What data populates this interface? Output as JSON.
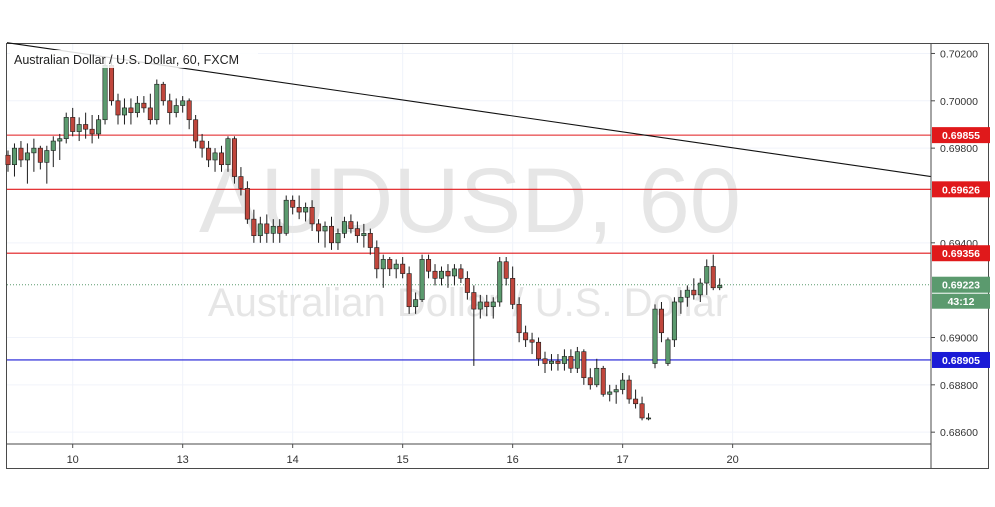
{
  "chart_title": "Australian Dollar / U.S. Dollar, 60, FXCM",
  "watermark": {
    "symbol": "AUDUSD, 60",
    "name": "Australian Dollar / U.S. Dollar"
  },
  "countdown": "43:12",
  "colors": {
    "up": "#5b9a6e",
    "down": "#c0463c",
    "resistance": "#e0191b",
    "support": "#1b1bd6",
    "trendline": "#111111",
    "last_price": "#5b9a6e"
  },
  "chart_data": {
    "type": "candlestick",
    "title": "Australian Dollar / U.S. Dollar, 60, FXCM",
    "x_ticks": [
      {
        "label": "10",
        "bar": 10
      },
      {
        "label": "13",
        "bar": 27
      },
      {
        "label": "14",
        "bar": 44
      },
      {
        "label": "15",
        "bar": 61
      },
      {
        "label": "16",
        "bar": 78
      },
      {
        "label": "17",
        "bar": 95
      },
      {
        "label": "20",
        "bar": 112
      }
    ],
    "y_ticks": [
      "0.70200",
      "0.70000",
      "0.69800",
      "0.69400",
      "0.69000",
      "0.68800",
      "0.68600"
    ],
    "ylim": [
      0.6855,
      0.7024
    ],
    "grid": true,
    "horizontal_levels": [
      {
        "label": "0.69855",
        "value": 0.69855,
        "color": "#e0191b"
      },
      {
        "label": "0.69626",
        "value": 0.69626,
        "color": "#e0191b"
      },
      {
        "label": "0.69356",
        "value": 0.69356,
        "color": "#e0191b"
      },
      {
        "label": "0.68905",
        "value": 0.68905,
        "color": "#1b1bd6"
      }
    ],
    "last_price": {
      "label": "0.69223",
      "value": 0.69223
    },
    "trendline": {
      "from": {
        "bar": 0,
        "price": 0.70245
      },
      "to": {
        "bar": 125,
        "price": 0.6975
      }
    },
    "candles": [
      [
        0.6977,
        0.6979,
        0.697,
        0.6973
      ],
      [
        0.6973,
        0.6982,
        0.6968,
        0.698
      ],
      [
        0.698,
        0.6983,
        0.6972,
        0.6975
      ],
      [
        0.6975,
        0.6982,
        0.6965,
        0.6978
      ],
      [
        0.6978,
        0.6984,
        0.697,
        0.698
      ],
      [
        0.698,
        0.6981,
        0.6971,
        0.6974
      ],
      [
        0.6974,
        0.6981,
        0.6965,
        0.6979
      ],
      [
        0.6979,
        0.6985,
        0.6972,
        0.6983
      ],
      [
        0.6983,
        0.6986,
        0.6975,
        0.6984
      ],
      [
        0.6984,
        0.6995,
        0.6982,
        0.6993
      ],
      [
        0.6993,
        0.6997,
        0.6985,
        0.6987
      ],
      [
        0.6987,
        0.6993,
        0.6983,
        0.699
      ],
      [
        0.699,
        0.6995,
        0.6984,
        0.6988
      ],
      [
        0.6988,
        0.6994,
        0.6982,
        0.6986
      ],
      [
        0.6986,
        0.6994,
        0.6984,
        0.6992
      ],
      [
        0.6992,
        0.7018,
        0.699,
        0.7015
      ],
      [
        0.7015,
        0.7019,
        0.6998,
        0.7
      ],
      [
        0.7,
        0.7003,
        0.699,
        0.6994
      ],
      [
        0.6994,
        0.7001,
        0.699,
        0.6997
      ],
      [
        0.6997,
        0.7001,
        0.699,
        0.6995
      ],
      [
        0.6995,
        0.7002,
        0.6993,
        0.6999
      ],
      [
        0.6999,
        0.7002,
        0.6995,
        0.6997
      ],
      [
        0.6997,
        0.7003,
        0.699,
        0.6992
      ],
      [
        0.6992,
        0.7009,
        0.699,
        0.7007
      ],
      [
        0.7007,
        0.7008,
        0.6998,
        0.7
      ],
      [
        0.7,
        0.7003,
        0.699,
        0.6995
      ],
      [
        0.6995,
        0.7001,
        0.6993,
        0.6998
      ],
      [
        0.6998,
        0.7002,
        0.6995,
        0.7
      ],
      [
        0.7,
        0.7001,
        0.6988,
        0.6992
      ],
      [
        0.6992,
        0.6994,
        0.698,
        0.6983
      ],
      [
        0.6983,
        0.6986,
        0.6976,
        0.698
      ],
      [
        0.698,
        0.6983,
        0.6972,
        0.6975
      ],
      [
        0.6975,
        0.698,
        0.697,
        0.6978
      ],
      [
        0.6978,
        0.6981,
        0.697,
        0.6973
      ],
      [
        0.6973,
        0.6985,
        0.697,
        0.6984
      ],
      [
        0.6984,
        0.6985,
        0.6965,
        0.6968
      ],
      [
        0.6968,
        0.6972,
        0.696,
        0.6963
      ],
      [
        0.6963,
        0.6966,
        0.6948,
        0.695
      ],
      [
        0.695,
        0.6954,
        0.694,
        0.6943
      ],
      [
        0.6943,
        0.6951,
        0.694,
        0.6948
      ],
      [
        0.6948,
        0.6952,
        0.694,
        0.6944
      ],
      [
        0.6944,
        0.695,
        0.694,
        0.6947
      ],
      [
        0.6947,
        0.695,
        0.694,
        0.6944
      ],
      [
        0.6944,
        0.696,
        0.6943,
        0.6958
      ],
      [
        0.6958,
        0.696,
        0.6952,
        0.6955
      ],
      [
        0.6955,
        0.696,
        0.695,
        0.6953
      ],
      [
        0.6953,
        0.6957,
        0.6949,
        0.6955
      ],
      [
        0.6955,
        0.6958,
        0.6945,
        0.6948
      ],
      [
        0.6948,
        0.695,
        0.694,
        0.6945
      ],
      [
        0.6945,
        0.6949,
        0.6938,
        0.6947
      ],
      [
        0.6947,
        0.6951,
        0.6937,
        0.694
      ],
      [
        0.694,
        0.6946,
        0.6937,
        0.6944
      ],
      [
        0.6944,
        0.6951,
        0.6942,
        0.6949
      ],
      [
        0.6949,
        0.6952,
        0.6944,
        0.6946
      ],
      [
        0.6946,
        0.6949,
        0.694,
        0.6943
      ],
      [
        0.6943,
        0.6948,
        0.6938,
        0.6944
      ],
      [
        0.6944,
        0.6946,
        0.6935,
        0.6938
      ],
      [
        0.6938,
        0.6941,
        0.6925,
        0.6929
      ],
      [
        0.6929,
        0.6935,
        0.6921,
        0.6933
      ],
      [
        0.6933,
        0.6934,
        0.6926,
        0.6929
      ],
      [
        0.6929,
        0.6933,
        0.6925,
        0.6931
      ],
      [
        0.6931,
        0.6934,
        0.6925,
        0.6927
      ],
      [
        0.6927,
        0.693,
        0.691,
        0.6913
      ],
      [
        0.6913,
        0.6919,
        0.691,
        0.6916
      ],
      [
        0.6916,
        0.6935,
        0.6915,
        0.6933
      ],
      [
        0.6933,
        0.6935,
        0.6925,
        0.6928
      ],
      [
        0.6928,
        0.6931,
        0.6922,
        0.6925
      ],
      [
        0.6925,
        0.693,
        0.6922,
        0.6928
      ],
      [
        0.6928,
        0.6931,
        0.6921,
        0.6926
      ],
      [
        0.6926,
        0.6931,
        0.6922,
        0.6929
      ],
      [
        0.6929,
        0.6931,
        0.6923,
        0.6925
      ],
      [
        0.6925,
        0.6928,
        0.6916,
        0.6919
      ],
      [
        0.6919,
        0.6922,
        0.6888,
        0.6912
      ],
      [
        0.6912,
        0.6918,
        0.6908,
        0.6915
      ],
      [
        0.6915,
        0.6918,
        0.6909,
        0.6913
      ],
      [
        0.6913,
        0.6917,
        0.6908,
        0.6915
      ],
      [
        0.6915,
        0.6934,
        0.6913,
        0.6932
      ],
      [
        0.6932,
        0.6934,
        0.6922,
        0.6925
      ],
      [
        0.6925,
        0.693,
        0.6912,
        0.6914
      ],
      [
        0.6914,
        0.6917,
        0.6898,
        0.6902
      ],
      [
        0.6902,
        0.6905,
        0.6896,
        0.6899
      ],
      [
        0.6899,
        0.6902,
        0.6893,
        0.6898
      ],
      [
        0.6898,
        0.69,
        0.6888,
        0.6891
      ],
      [
        0.6891,
        0.6894,
        0.6885,
        0.6889
      ],
      [
        0.6889,
        0.6893,
        0.6886,
        0.689
      ],
      [
        0.689,
        0.6893,
        0.6886,
        0.6889
      ],
      [
        0.6889,
        0.6895,
        0.6886,
        0.6892
      ],
      [
        0.6892,
        0.6895,
        0.6885,
        0.6887
      ],
      [
        0.6887,
        0.6896,
        0.6885,
        0.6894
      ],
      [
        0.6894,
        0.6895,
        0.688,
        0.6883
      ],
      [
        0.6883,
        0.6887,
        0.6878,
        0.688
      ],
      [
        0.688,
        0.6891,
        0.6879,
        0.6887
      ],
      [
        0.6887,
        0.6888,
        0.6875,
        0.6876
      ],
      [
        0.6876,
        0.688,
        0.6873,
        0.6877
      ],
      [
        0.6877,
        0.688,
        0.6872,
        0.6878
      ],
      [
        0.6878,
        0.6885,
        0.6876,
        0.6882
      ],
      [
        0.6882,
        0.6884,
        0.6872,
        0.6874
      ],
      [
        0.6874,
        0.6878,
        0.687,
        0.6872
      ],
      [
        0.6872,
        0.6875,
        0.6865,
        0.6866
      ],
      [
        0.6866,
        0.6868,
        0.6865,
        0.6866
      ],
      [
        0.6889,
        0.6914,
        0.6887,
        0.6912
      ],
      [
        0.6912,
        0.6915,
        0.6898,
        0.6902
      ],
      [
        0.6889,
        0.69,
        0.6888,
        0.6899
      ],
      [
        0.6899,
        0.6917,
        0.6896,
        0.6915
      ],
      [
        0.6915,
        0.692,
        0.691,
        0.6917
      ],
      [
        0.6917,
        0.6922,
        0.6913,
        0.692
      ],
      [
        0.692,
        0.6925,
        0.6916,
        0.6918
      ],
      [
        0.6918,
        0.6925,
        0.6915,
        0.6923
      ],
      [
        0.6923,
        0.6933,
        0.6918,
        0.693
      ],
      [
        0.693,
        0.6935,
        0.692,
        0.6921
      ],
      [
        0.6921,
        0.6925,
        0.692,
        0.6922
      ]
    ]
  }
}
